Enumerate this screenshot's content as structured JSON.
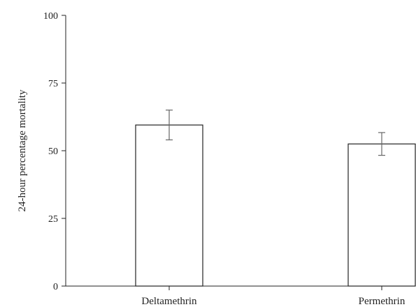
{
  "chart_data": {
    "type": "bar",
    "categories": [
      "Deltamethrin",
      "Permethrin"
    ],
    "values": [
      59.5,
      52.5
    ],
    "error": [
      5.5,
      4.2
    ],
    "ylabel": "24-hour percentage mortality",
    "xlabel": "",
    "ylim": [
      0,
      100
    ],
    "yticks": [
      0,
      25,
      50,
      75,
      100
    ],
    "grid": false,
    "legend": "none",
    "colors": {
      "bar_fill": "#ffffff",
      "bar_stroke": "#222222",
      "error_bar": "#666666",
      "axis": "#222222"
    }
  }
}
